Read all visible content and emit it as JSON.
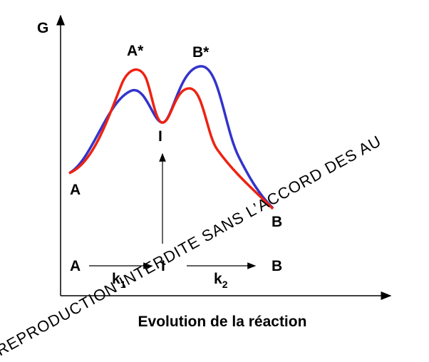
{
  "axis": {
    "y_label": "G",
    "x_label": "Evolution de la réaction"
  },
  "curve_labels": {
    "a_star": "A*",
    "b_star": "B*",
    "intermediate": "I",
    "start": "A",
    "end": "B"
  },
  "scheme": {
    "start": "A",
    "k1": {
      "base": "k",
      "sub": "1"
    },
    "intermediate": "I",
    "k2": {
      "base": "k",
      "sub": "2"
    },
    "end": "B"
  },
  "watermark": "REPRODUCTION INTERDITE SANS L’ACCORD DES AU"
}
